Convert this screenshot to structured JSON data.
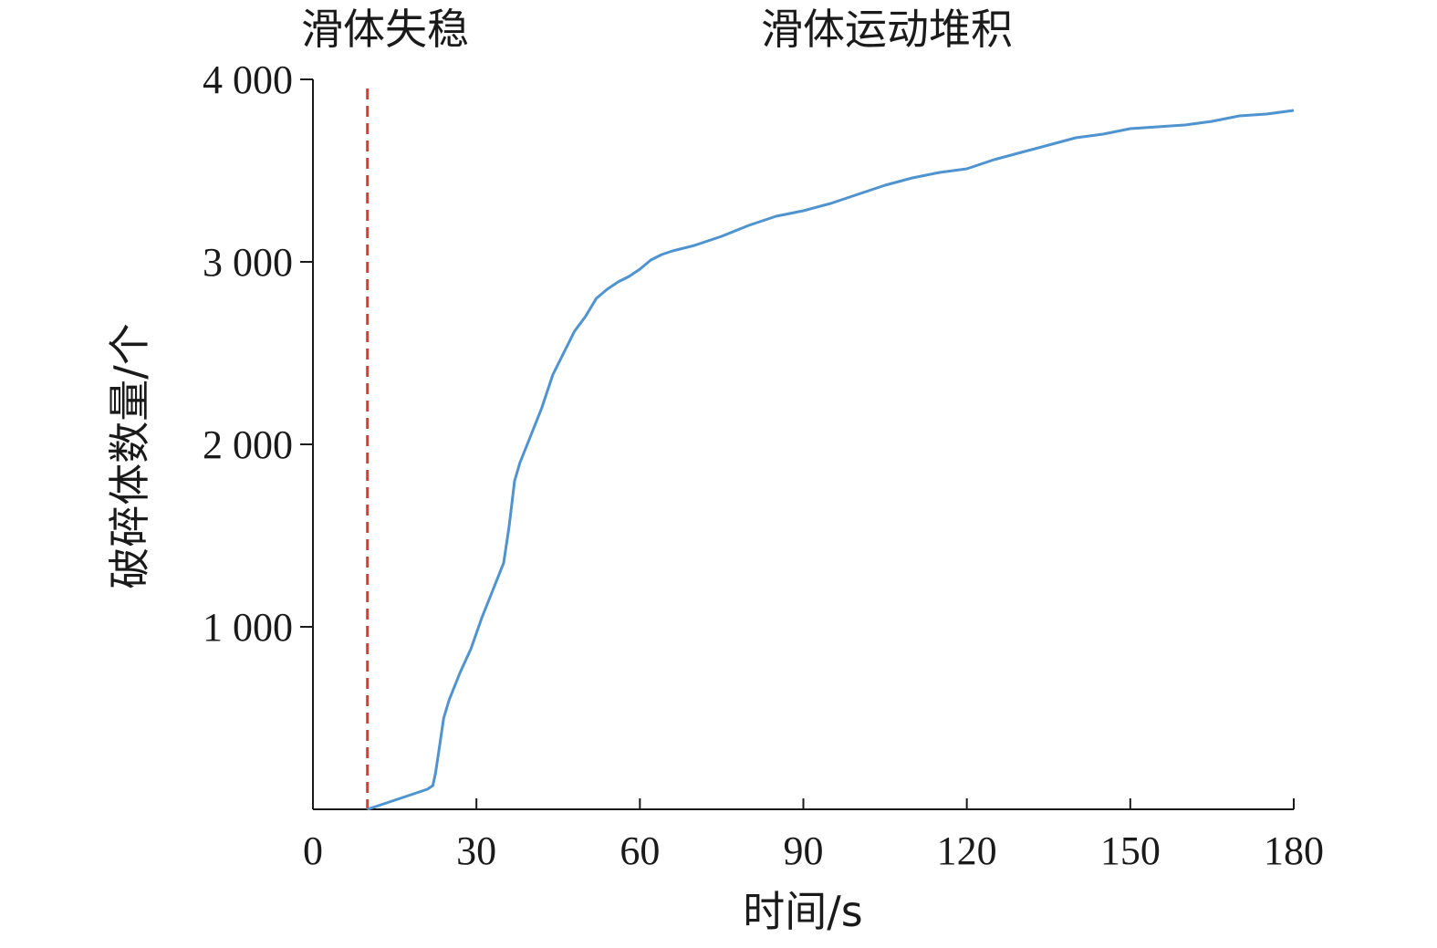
{
  "chart_data": {
    "type": "line",
    "xlabel": "时间/s",
    "ylabel": "破碎体数量/个",
    "xlim": [
      0,
      180
    ],
    "ylim": [
      0,
      4000
    ],
    "x_ticks": [
      {
        "value": 0,
        "label": "0"
      },
      {
        "value": 30,
        "label": "30"
      },
      {
        "value": 60,
        "label": "60"
      },
      {
        "value": 90,
        "label": "90"
      },
      {
        "value": 120,
        "label": "120"
      },
      {
        "value": 150,
        "label": "150"
      },
      {
        "value": 180,
        "label": "180"
      }
    ],
    "y_ticks": [
      {
        "value": 1000,
        "label": "1 000"
      },
      {
        "value": 2000,
        "label": "2 000"
      },
      {
        "value": 3000,
        "label": "3 000"
      },
      {
        "value": 4000,
        "label": "4 000"
      }
    ],
    "grid": false,
    "marker_line": {
      "x": 10,
      "color": "#d93a3a",
      "style": "dashed"
    },
    "phase_labels": [
      {
        "text": "滑体失稳",
        "x": 10
      },
      {
        "text": "滑体运动堆积",
        "x": 105
      }
    ],
    "series": [
      {
        "color": "#4f93cf",
        "x": [
          10,
          12,
          15,
          18,
          20,
          21,
          22,
          22.5,
          23,
          24,
          25,
          27,
          29,
          31,
          33,
          35,
          36,
          37,
          38,
          40,
          42,
          44,
          46,
          48,
          50,
          52,
          54,
          56,
          58,
          60,
          62,
          64,
          66,
          70,
          75,
          80,
          85,
          90,
          95,
          100,
          105,
          110,
          115,
          120,
          125,
          130,
          135,
          140,
          145,
          150,
          155,
          160,
          165,
          170,
          175,
          180
        ],
        "y": [
          0,
          20,
          50,
          80,
          100,
          110,
          130,
          200,
          300,
          500,
          600,
          750,
          880,
          1050,
          1200,
          1350,
          1550,
          1800,
          1900,
          2050,
          2200,
          2380,
          2500,
          2620,
          2700,
          2800,
          2850,
          2890,
          2920,
          2960,
          3010,
          3040,
          3060,
          3090,
          3140,
          3200,
          3250,
          3280,
          3320,
          3370,
          3420,
          3460,
          3490,
          3510,
          3560,
          3600,
          3640,
          3680,
          3700,
          3730,
          3740,
          3750,
          3770,
          3800,
          3810,
          3830
        ]
      }
    ]
  }
}
